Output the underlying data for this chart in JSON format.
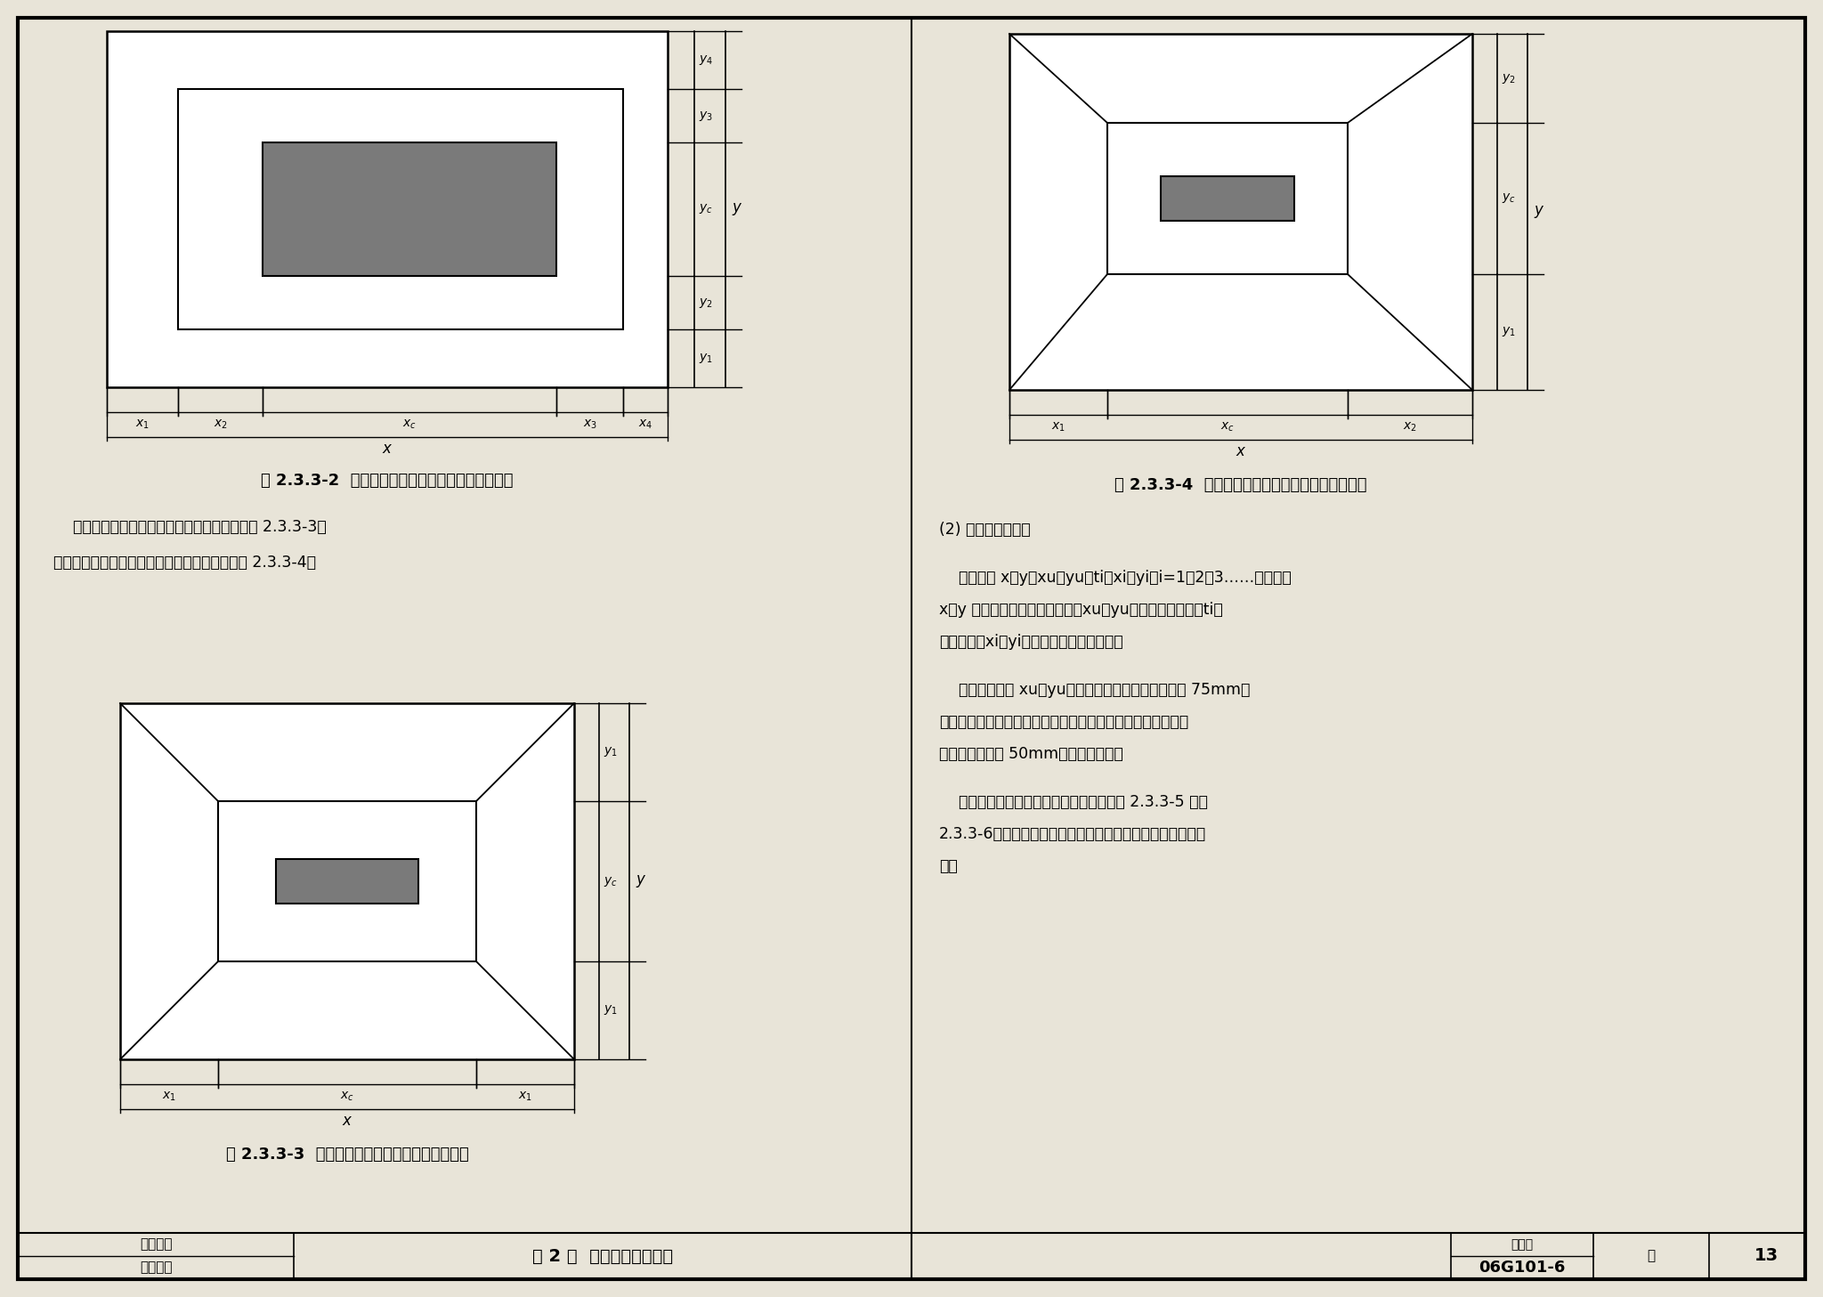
{
  "bg_color": "#e8e4d8",
  "page_width": 20.48,
  "page_height": 14.57,
  "caption1": "图 2.3.3-2  非对称阶形截面普通独立基础原位标注",
  "caption2": "图 2.3.3-4  非对称坡形截面普通独立基础原位标注",
  "caption3": "图 2.3.3-3  对称坡形截面普通独立基础原位标注",
  "text_line1": "对称坡形截面普通独立基础的原位标注，见图 2.3.3-3；",
  "text_line2": "非对称坡形截面普通独立基础的原位标注，见图 2.3.3-4。",
  "footer_left1": "第一部分",
  "footer_left2": "制图规则",
  "footer_mid": "第 2 章  独立基础制图规则",
  "footer_label": "图集号",
  "footer_id": "06G101-6",
  "footer_page_label": "页",
  "footer_page": "13",
  "right_text": [
    "(2) 杯口独立基础：",
    "",
    "    原位标注 x、y、xu、yu、ti、xi、yi，i=1，2，3……。其中，",
    "x、y 为杯口独立基础两向边长，xu、yu为杯口上口尺寸，ti为",
    "杯壁厚度，xi、yi为阶宽或坡形截面尺寸。",
    "",
    "    杯口上口尺寸 xu、yu，按柱截面边长两侧双向各加 75mm；",
    "杯口下口尺寸按标准构造详图（为插入杯口的相应柱截面边长",
    "尺寸，每边各加 50mm），设计不注。",
    "",
    "    阶形截面杯口独立基础的原位标注，见图 2.3.3-5 和图",
    "2.3.3-6。高杯口独立基础的原位标注与杯口独立基础完全相",
    "同。"
  ]
}
